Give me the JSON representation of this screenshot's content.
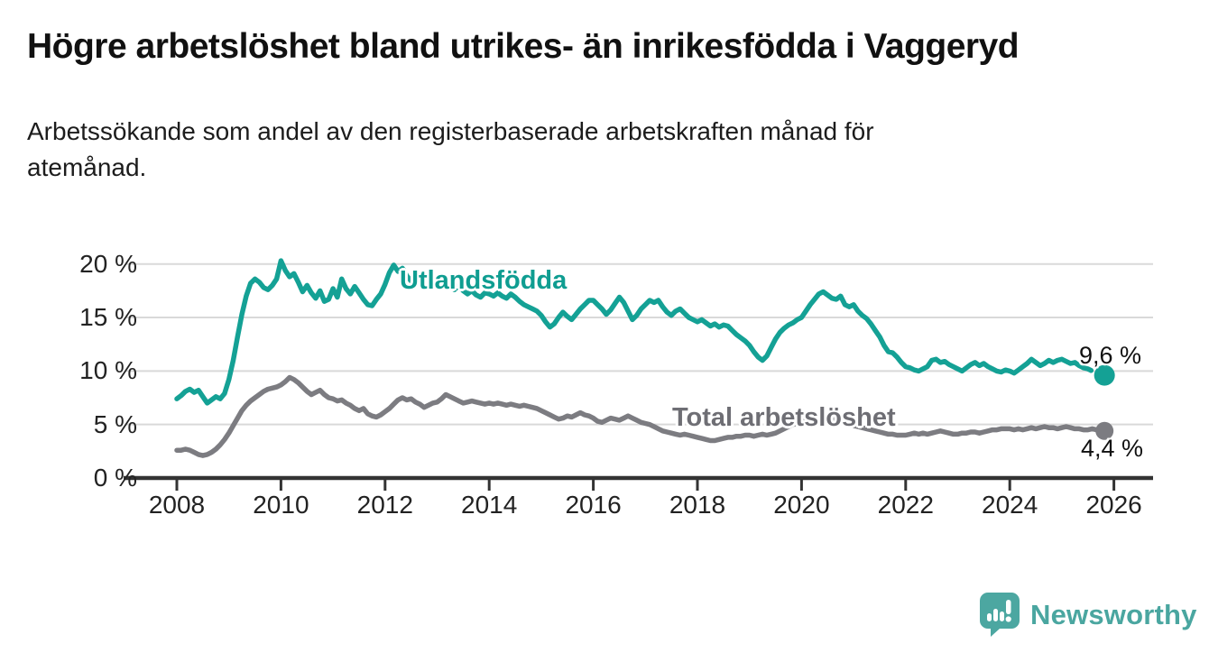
{
  "chart_data": {
    "type": "line",
    "title": "Högre arbetslöshet bland utrikes- än inrikesfödda i Vaggeryd",
    "subtitle_lines": [
      "Arbetssökande som andel av den registerbaserade arbetskraften månad för",
      "månad."
    ],
    "unit": "%",
    "frequency": "monthly",
    "x_start_year": 2008,
    "xlim": [
      2007.3,
      2026.8
    ],
    "ylim": [
      0,
      21
    ],
    "grid": "horizontal",
    "legend_position": "inline-labels",
    "yticks": [
      {
        "v": 0,
        "label": "0 %"
      },
      {
        "v": 5,
        "label": "5 %"
      },
      {
        "v": 10,
        "label": "10 %"
      },
      {
        "v": 15,
        "label": "15 %"
      },
      {
        "v": 20,
        "label": "20 %"
      }
    ],
    "xticks": [
      {
        "v": 2008,
        "label": "2008"
      },
      {
        "v": 2010,
        "label": "2010"
      },
      {
        "v": 2012,
        "label": "2012"
      },
      {
        "v": 2014,
        "label": "2014"
      },
      {
        "v": 2016,
        "label": "2016"
      },
      {
        "v": 2018,
        "label": "2018"
      },
      {
        "v": 2020,
        "label": "2020"
      },
      {
        "v": 2022,
        "label": "2022"
      },
      {
        "v": 2024,
        "label": "2024"
      },
      {
        "v": 2026,
        "label": "2026"
      }
    ],
    "series": [
      {
        "name": "Utlandsfödda",
        "color": "#14A195",
        "label_color": "#0F9D91",
        "end_label": "9,6 %",
        "last_value": 9.6,
        "dashed_tail_points": 5,
        "values": [
          7.4,
          7.7,
          8.1,
          8.3,
          8.0,
          8.2,
          7.6,
          7.0,
          7.3,
          7.6,
          7.4,
          7.9,
          9.2,
          11.0,
          13.2,
          15.3,
          17.0,
          18.2,
          18.6,
          18.3,
          17.8,
          17.6,
          18.0,
          18.6,
          20.3,
          19.4,
          18.8,
          19.1,
          18.3,
          17.4,
          18.0,
          17.3,
          16.8,
          17.5,
          16.5,
          16.7,
          17.7,
          16.9,
          18.6,
          17.7,
          17.2,
          17.9,
          17.3,
          16.7,
          16.2,
          16.1,
          16.7,
          17.2,
          18.1,
          19.2,
          19.9,
          19.3,
          19.6,
          18.9,
          18.4,
          18.7,
          18.1,
          17.8,
          18.2,
          18.5,
          18.3,
          18.0,
          18.4,
          17.9,
          17.6,
          18.0,
          17.5,
          17.2,
          17.5,
          17.1,
          16.9,
          17.3,
          17.2,
          17.0,
          17.3,
          17.0,
          16.8,
          17.2,
          16.9,
          16.5,
          16.2,
          16.0,
          15.8,
          15.6,
          15.2,
          14.6,
          14.1,
          14.4,
          15.0,
          15.5,
          15.1,
          14.8,
          15.3,
          15.8,
          16.2,
          16.6,
          16.6,
          16.2,
          15.8,
          15.3,
          15.7,
          16.3,
          16.9,
          16.4,
          15.6,
          14.8,
          15.2,
          15.8,
          16.2,
          16.6,
          16.4,
          16.6,
          16.0,
          15.5,
          15.2,
          15.6,
          15.8,
          15.4,
          15.0,
          14.8,
          14.6,
          14.8,
          14.5,
          14.2,
          14.4,
          14.1,
          14.3,
          14.2,
          13.8,
          13.4,
          13.1,
          12.8,
          12.4,
          11.8,
          11.3,
          11.0,
          11.4,
          12.2,
          13.0,
          13.6,
          14.0,
          14.3,
          14.5,
          14.8,
          15.0,
          15.6,
          16.2,
          16.7,
          17.2,
          17.4,
          17.1,
          16.8,
          16.7,
          17.0,
          16.2,
          16.0,
          16.2,
          15.6,
          15.2,
          14.9,
          14.4,
          13.8,
          13.2,
          12.4,
          11.8,
          11.7,
          11.3,
          10.8,
          10.4,
          10.3,
          10.1,
          10.0,
          10.2,
          10.4,
          11.0,
          11.1,
          10.8,
          10.9,
          10.6,
          10.4,
          10.2,
          10.0,
          10.3,
          10.6,
          10.8,
          10.5,
          10.7,
          10.4,
          10.2,
          10.0,
          9.9,
          10.1,
          10.0,
          9.8,
          10.1,
          10.4,
          10.7,
          11.1,
          10.8,
          10.5,
          10.7,
          11.0,
          10.8,
          11.0,
          11.1,
          10.9,
          10.7,
          10.8,
          10.5,
          10.3,
          10.2,
          10.0,
          9.8,
          9.6
        ]
      },
      {
        "name": "Total arbetslöshet",
        "color": "#7C7C81",
        "label_color": "#6E6E74",
        "end_label": "4,4 %",
        "last_value": 4.4,
        "dashed_tail_points": 0,
        "values": [
          2.6,
          2.6,
          2.7,
          2.6,
          2.4,
          2.2,
          2.1,
          2.2,
          2.4,
          2.7,
          3.1,
          3.6,
          4.2,
          4.9,
          5.6,
          6.3,
          6.8,
          7.2,
          7.5,
          7.8,
          8.1,
          8.3,
          8.4,
          8.5,
          8.7,
          9.0,
          9.4,
          9.2,
          8.9,
          8.5,
          8.1,
          7.8,
          8.0,
          8.2,
          7.8,
          7.5,
          7.4,
          7.2,
          7.3,
          7.0,
          6.8,
          6.5,
          6.3,
          6.5,
          6.0,
          5.8,
          5.7,
          5.9,
          6.2,
          6.5,
          6.9,
          7.3,
          7.5,
          7.3,
          7.4,
          7.1,
          6.9,
          6.6,
          6.8,
          7.0,
          7.1,
          7.4,
          7.8,
          7.6,
          7.4,
          7.2,
          7.0,
          7.1,
          7.2,
          7.1,
          7.0,
          6.9,
          7.0,
          6.9,
          7.0,
          6.9,
          6.8,
          6.9,
          6.8,
          6.7,
          6.8,
          6.7,
          6.6,
          6.5,
          6.3,
          6.1,
          5.9,
          5.7,
          5.5,
          5.6,
          5.8,
          5.7,
          5.9,
          6.1,
          5.9,
          5.8,
          5.6,
          5.3,
          5.2,
          5.4,
          5.6,
          5.5,
          5.4,
          5.6,
          5.8,
          5.6,
          5.4,
          5.2,
          5.1,
          5.0,
          4.8,
          4.6,
          4.4,
          4.3,
          4.2,
          4.1,
          4.0,
          4.1,
          4.0,
          3.9,
          3.8,
          3.7,
          3.6,
          3.5,
          3.5,
          3.6,
          3.7,
          3.8,
          3.8,
          3.9,
          3.9,
          4.0,
          4.0,
          3.9,
          4.0,
          4.1,
          4.0,
          4.1,
          4.2,
          4.4,
          4.6,
          4.8,
          5.0,
          5.1,
          5.2,
          5.4,
          5.6,
          5.8,
          5.9,
          5.8,
          5.7,
          5.6,
          5.5,
          5.3,
          5.1,
          5.0,
          4.9,
          4.8,
          4.7,
          4.6,
          4.5,
          4.4,
          4.3,
          4.2,
          4.1,
          4.1,
          4.0,
          4.0,
          4.0,
          4.1,
          4.2,
          4.1,
          4.2,
          4.1,
          4.2,
          4.3,
          4.4,
          4.3,
          4.2,
          4.1,
          4.1,
          4.2,
          4.2,
          4.3,
          4.3,
          4.2,
          4.3,
          4.4,
          4.5,
          4.5,
          4.6,
          4.6,
          4.6,
          4.5,
          4.6,
          4.5,
          4.6,
          4.7,
          4.6,
          4.7,
          4.8,
          4.7,
          4.7,
          4.6,
          4.7,
          4.8,
          4.7,
          4.6,
          4.6,
          4.5,
          4.5,
          4.6,
          4.5,
          4.4
        ]
      }
    ],
    "colors": {
      "grid": "#D9D9D9",
      "axis": "#333333",
      "tick_text": "#222222",
      "end_label_text": "#111111"
    }
  },
  "footer": {
    "brand": "Newsworthy",
    "brand_color": "#4AA6A0"
  }
}
